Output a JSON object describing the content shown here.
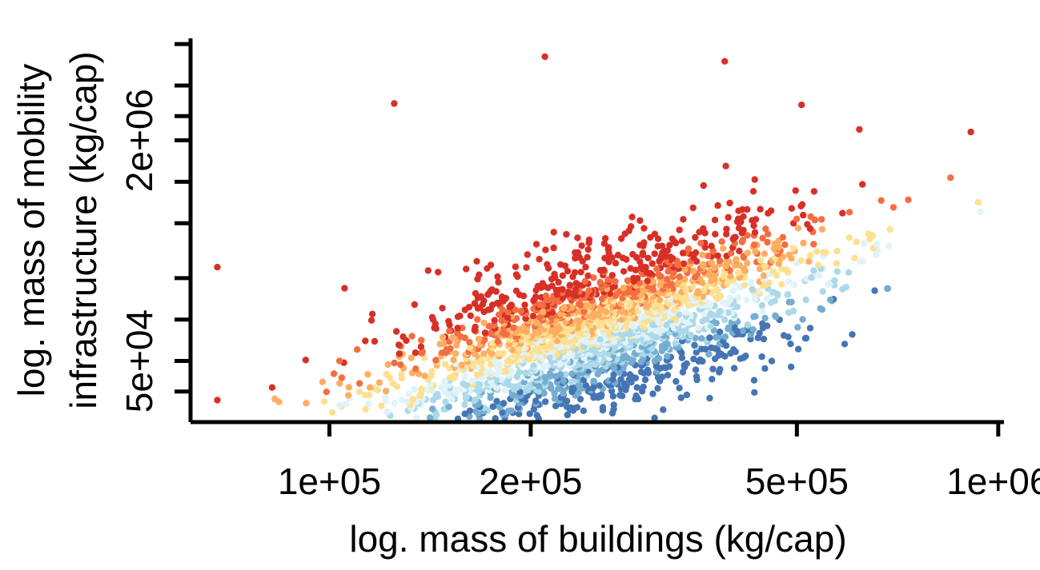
{
  "chart_data": {
    "type": "scatter",
    "title": "",
    "xlabel": "log. mass of buildings (kg/cap)",
    "ylabel_lines": [
      "log. mass of mobility",
      "infrastructure (kg/cap)"
    ],
    "x_scale": "log",
    "y_scale": "log",
    "xlim": [
      62000,
      1020000
    ],
    "ylim": [
      18000,
      11000000
    ],
    "x_ticks": [
      {
        "value": 100000,
        "label": "1e+05"
      },
      {
        "value": 200000,
        "label": "2e+05"
      },
      {
        "value": 500000,
        "label": "5e+05"
      },
      {
        "value": 1000000,
        "label": "1e+06"
      }
    ],
    "x_minor_ticks": [],
    "y_ticks": [
      {
        "value": 50000,
        "label": "5e+04"
      },
      {
        "value": 2000000,
        "label": "2e+06"
      }
    ],
    "y_ticks_unlabeled": [
      30000,
      100000,
      200000,
      500000,
      1000000,
      3000000,
      5000000,
      10000000
    ],
    "grid": false,
    "legend": "none",
    "color_scale": [
      "#4575b4",
      "#74add1",
      "#abd9e9",
      "#e0f3f8",
      "#fee090",
      "#fdae61",
      "#f46d43",
      "#d73027"
    ],
    "n_points": 2600,
    "relationship": {
      "slope_loglog": 1.5,
      "intercept_log10": -3.2,
      "residual_sd_log10": 0.28,
      "x_log10_center": 5.4,
      "x_log10_sd": 0.16,
      "x_log10_range": [
        4.85,
        5.98
      ]
    },
    "representative_points": [
      {
        "x": 68000,
        "y": 26000
      },
      {
        "x": 68000,
        "y": 240000
      },
      {
        "x": 910000,
        "y": 2300000
      },
      {
        "x": 620000,
        "y": 2400000
      },
      {
        "x": 640000,
        "y": 420000
      },
      {
        "x": 210000,
        "y": 8100000
      },
      {
        "x": 390000,
        "y": 7500000
      },
      {
        "x": 125000,
        "y": 3700000
      },
      {
        "x": 180000,
        "y": 23000
      },
      {
        "x": 140000,
        "y": 31000
      }
    ]
  }
}
